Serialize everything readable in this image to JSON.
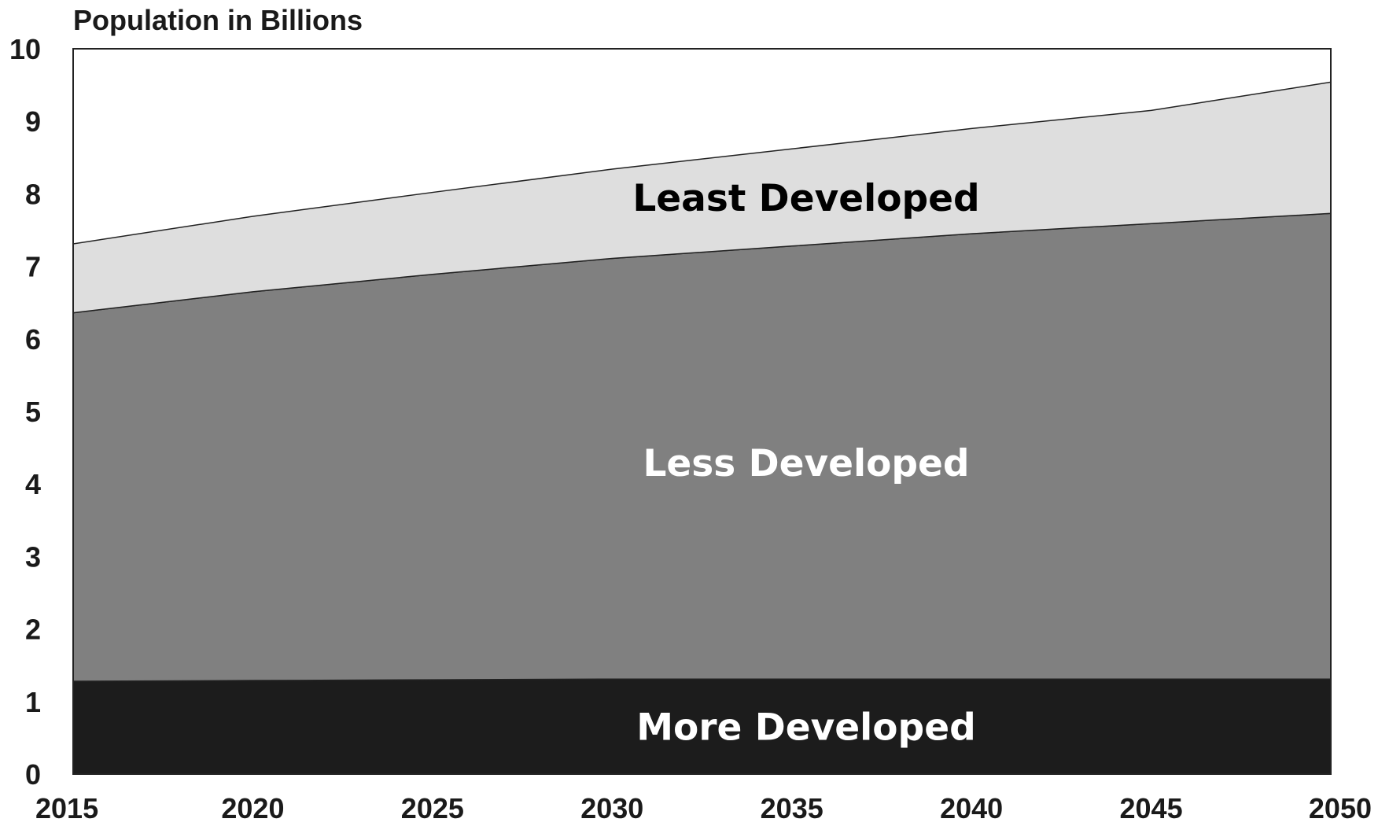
{
  "chart_data": {
    "type": "area",
    "stacked": true,
    "ylabel": "Population in Billions",
    "x": [
      2015,
      2020,
      2025,
      2030,
      2035,
      2040,
      2045,
      2050
    ],
    "xlim": [
      2015,
      2050
    ],
    "ylim": [
      0,
      10
    ],
    "yticks": [
      0,
      1,
      2,
      3,
      4,
      5,
      6,
      7,
      8,
      9,
      10
    ],
    "grid": false,
    "series": [
      {
        "name": "More Developed",
        "color": "#1c1c1c",
        "label_color": "#ffffff",
        "values": [
          1.28,
          1.29,
          1.3,
          1.31,
          1.31,
          1.31,
          1.31,
          1.31
        ]
      },
      {
        "name": "Less Developed",
        "color": "#808080",
        "label_color": "#ffffff",
        "values": [
          5.08,
          5.36,
          5.59,
          5.8,
          5.97,
          6.14,
          6.28,
          6.42
        ]
      },
      {
        "name": "Least Developed",
        "color": "#dedede",
        "label_color": "#000000",
        "values": [
          0.95,
          1.04,
          1.13,
          1.23,
          1.34,
          1.45,
          1.56,
          1.81
        ]
      }
    ]
  }
}
